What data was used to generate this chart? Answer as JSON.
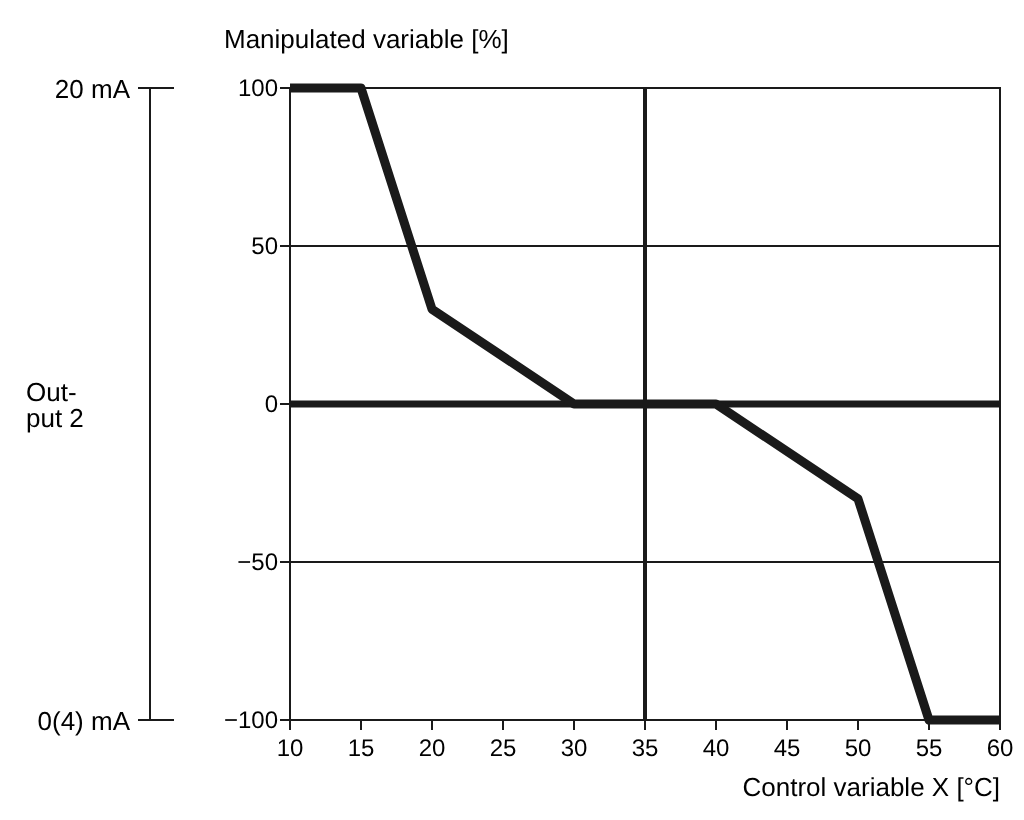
{
  "chart_data": {
    "type": "line",
    "xlabel": "Control variable X [°C]",
    "ylabel": "Manipulated variable [%]",
    "annotations": [
      "20 mA",
      "Out-\nput 2",
      "0(4) mA"
    ],
    "series": [
      {
        "color": "#1a1a1a",
        "x": [
          10,
          15,
          20,
          30,
          40,
          50,
          55,
          60
        ],
        "values": [
          100,
          100,
          30,
          0,
          0,
          -30,
          -100,
          -100
        ]
      }
    ],
    "xlim": [
      10,
      60
    ],
    "xticks": [
      10,
      15,
      20,
      25,
      30,
      35,
      40,
      45,
      50,
      55,
      60
    ],
    "ylim": [
      -100,
      100
    ],
    "yticks": [
      -100,
      -50,
      0,
      50,
      100
    ],
    "ref_lines": [
      {
        "axis": "y",
        "value": 0,
        "color": "#1a1a1a"
      },
      {
        "axis": "x",
        "value": 35,
        "color": "#1a1a1a"
      }
    ],
    "grid": "y",
    "line_style": "solid",
    "marker": "none"
  }
}
